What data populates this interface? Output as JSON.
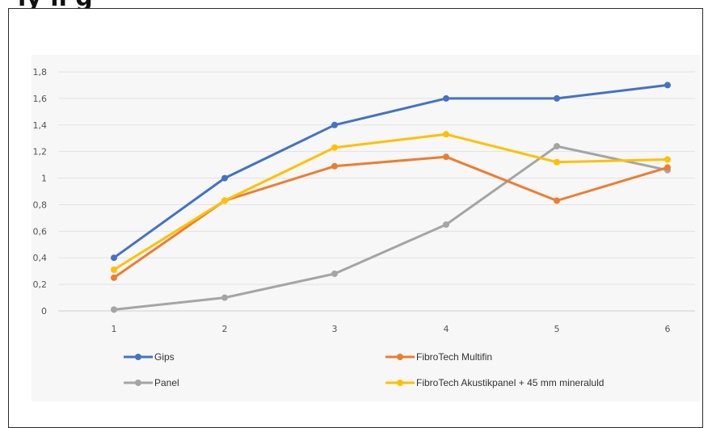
{
  "page": {
    "heading": "ly  ll   g"
  },
  "chart_data": {
    "type": "line",
    "title": "",
    "xlabel": "",
    "ylabel": "",
    "categories": [
      1,
      2,
      3,
      4,
      5,
      6
    ],
    "y_ticks": [
      "0",
      "0,2",
      "0,4",
      "0,6",
      "0,8",
      "1",
      "1,2",
      "1,4",
      "1,6",
      "1,8"
    ],
    "ylim": [
      0,
      1.8
    ],
    "grid": true,
    "legend_position": "bottom",
    "series": [
      {
        "name": "Gips",
        "color": "#4472c4",
        "values": [
          0.4,
          1.0,
          1.4,
          1.6,
          1.6,
          1.7
        ]
      },
      {
        "name": "FibroTech Multifin",
        "color": "#ed7d31",
        "values": [
          0.25,
          0.83,
          1.09,
          1.16,
          0.83,
          1.08
        ]
      },
      {
        "name": "Panel",
        "color": "#a5a5a5",
        "values": [
          0.01,
          0.1,
          0.28,
          0.65,
          1.24,
          1.06
        ]
      },
      {
        "name": "FibroTech Akustikpanel + 45 mm mineraluld",
        "color": "#ffc000",
        "values": [
          0.31,
          0.83,
          1.23,
          1.33,
          1.12,
          1.14
        ]
      }
    ]
  }
}
